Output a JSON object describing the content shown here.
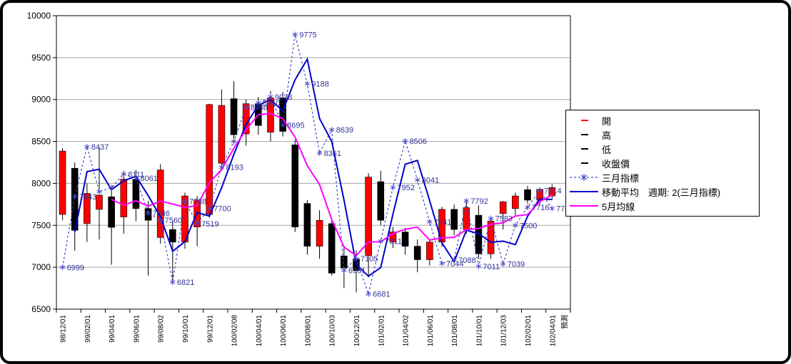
{
  "chart_data": {
    "type": "candlestick-with-lines",
    "title": "",
    "y_axis": {
      "min": 6500,
      "max": 10000,
      "step": 500,
      "ticks": [
        6500,
        7000,
        7500,
        8000,
        8500,
        9000,
        9500,
        10000
      ]
    },
    "x_labels": [
      "98/12/01",
      "99/02/01",
      "99/04/01",
      "99/06/01",
      "99/08/02",
      "99/10/01",
      "99/12/01",
      "100/02/08",
      "100/04/01",
      "100/06/01",
      "100/08/01",
      "100/10/03",
      "100/12/01",
      "101/02/01",
      "101/04/02",
      "101/06/01",
      "101/08/01",
      "101/10/01",
      "101/12/03",
      "102/02/01",
      "102/04/01",
      "預測"
    ],
    "ohlc_order": [
      "open",
      "high",
      "low",
      "close"
    ],
    "ohlc": [
      [
        7630,
        8420,
        7560,
        8385
      ],
      [
        8180,
        8250,
        7200,
        7440
      ],
      [
        7520,
        8000,
        7300,
        7880
      ],
      [
        7690,
        8430,
        7330,
        7860
      ],
      [
        7840,
        7950,
        7030,
        7475
      ],
      [
        7600,
        8150,
        7400,
        8050
      ],
      [
        8050,
        8160,
        7550,
        7700
      ],
      [
        7700,
        7790,
        6900,
        7560
      ],
      [
        7355,
        8230,
        7280,
        8160
      ],
      [
        7450,
        7560,
        6820,
        7300
      ],
      [
        7300,
        7890,
        7220,
        7850
      ],
      [
        7480,
        7850,
        7250,
        7800
      ],
      [
        7630,
        8950,
        7590,
        8940
      ],
      [
        8240,
        9120,
        8150,
        8930
      ],
      [
        9010,
        9220,
        8460,
        8580
      ],
      [
        8590,
        9000,
        8450,
        8950
      ],
      [
        8950,
        9030,
        8580,
        8690
      ],
      [
        8610,
        9100,
        8500,
        9020
      ],
      [
        9020,
        9090,
        8560,
        8620
      ],
      [
        8460,
        8520,
        7420,
        7480
      ],
      [
        7760,
        7800,
        7150,
        7250
      ],
      [
        7250,
        7680,
        7100,
        7560
      ],
      [
        7520,
        7560,
        6900,
        6930
      ],
      [
        7135,
        7260,
        6750,
        6990
      ],
      [
        7100,
        7200,
        6700,
        6960
      ],
      [
        7140,
        8120,
        6880,
        8075
      ],
      [
        8020,
        8150,
        7500,
        7560
      ],
      [
        7300,
        7480,
        7230,
        7420
      ],
      [
        7420,
        7470,
        7150,
        7250
      ],
      [
        7250,
        7330,
        6940,
        7090
      ],
      [
        7090,
        7320,
        7020,
        7300
      ],
      [
        7300,
        7720,
        7240,
        7690
      ],
      [
        7690,
        7750,
        7380,
        7450
      ],
      [
        7450,
        7780,
        7400,
        7710
      ],
      [
        7620,
        7740,
        7100,
        7160
      ],
      [
        7160,
        7580,
        7100,
        7550
      ],
      [
        7640,
        7790,
        7450,
        7780
      ],
      [
        7700,
        7890,
        7620,
        7850
      ],
      [
        7925,
        7970,
        7760,
        7800
      ],
      [
        7800,
        7950,
        7740,
        7930
      ],
      [
        7850,
        7990,
        7800,
        7950
      ]
    ],
    "indicator": {
      "name": "三月指標",
      "values": [
        6999,
        7843,
        8437,
        7900,
        7950,
        8111,
        8061,
        7646,
        7560,
        6821,
        7788,
        7519,
        7700,
        8193,
        8500,
        8908,
        8960,
        9033,
        8695,
        9775,
        9188,
        8361,
        8639,
        6961,
        7105,
        6681,
        7311,
        7952,
        8506,
        8041,
        7541,
        7044,
        7088,
        7792,
        7011,
        7583,
        7039,
        7500,
        7716,
        7914,
        7701
      ],
      "labels": [
        "6999",
        "7843",
        "8437",
        null,
        null,
        "8111",
        "8061",
        "7646",
        "7560",
        "6821",
        "7788",
        "7519",
        "7700",
        "8193",
        null,
        "8908",
        "8960",
        "9033",
        "8695",
        "9775",
        "9188",
        "8361",
        "8639",
        "6961",
        "7105",
        "6681",
        "7311",
        "7952",
        "8506",
        "8041",
        "7541",
        "7044",
        "7088",
        "7792",
        "7011",
        "7583",
        "7039",
        "7500",
        "7716",
        "7914",
        "7701"
      ]
    },
    "ma2": {
      "name": "移動平均　週期: 2(三月指標)",
      "period": 2,
      "source": "indicator"
    },
    "ma5": {
      "name": "5月均線",
      "period": 5,
      "source": "close"
    },
    "colors": {
      "up": "#FF0000",
      "down": "#000000",
      "indicator": "#4646C8",
      "ma2": "#0000CC",
      "ma5": "#FF00FF",
      "data_label": "#333399",
      "grid": "#A6A6A6",
      "axis": "#000000"
    },
    "legend_position": "right"
  },
  "legend": {
    "items": [
      {
        "label": "開",
        "marker": "dash-red"
      },
      {
        "label": "高",
        "marker": "dash-black"
      },
      {
        "label": "低",
        "marker": "dash-black"
      },
      {
        "label": "收盤價",
        "marker": "dash-black"
      },
      {
        "label": "三月指標",
        "marker": "dashed-star-blue"
      },
      {
        "label": "移動平均　週期: 2(三月指標)",
        "marker": "line-blue"
      },
      {
        "label": "5月均線",
        "marker": "line-magenta"
      }
    ]
  }
}
